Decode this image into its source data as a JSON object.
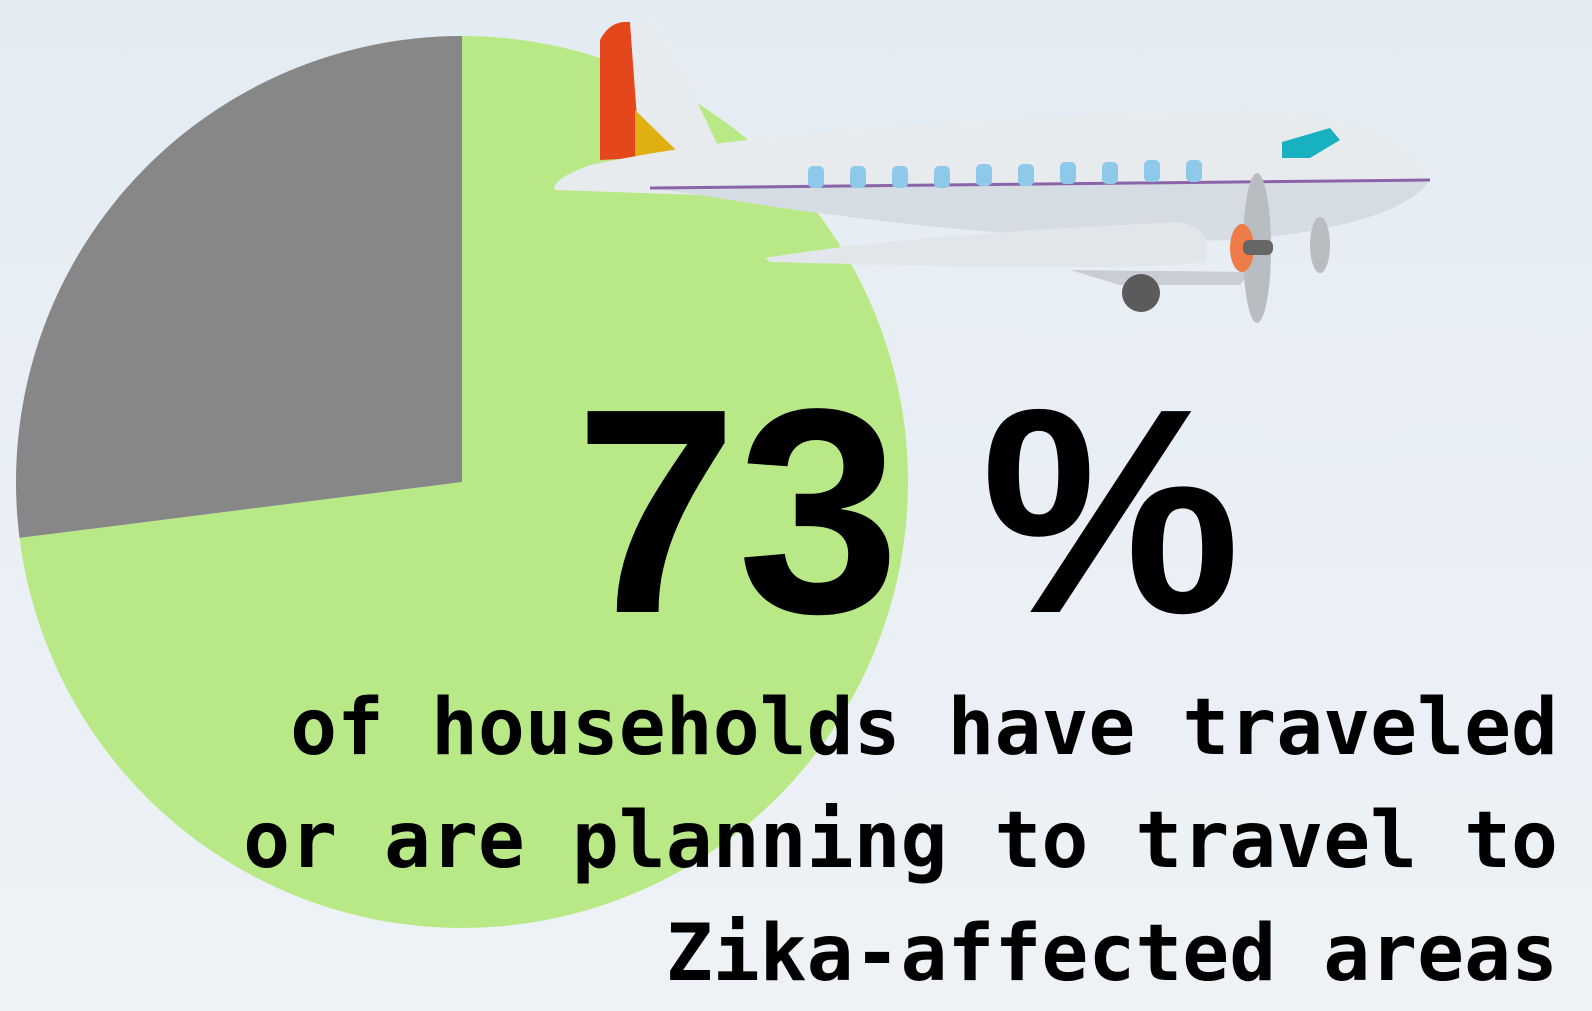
{
  "chart_data": {
    "type": "pie",
    "values": [
      73,
      27
    ],
    "value_labels": [
      "73 %",
      null
    ],
    "colors": [
      "#b9e986",
      "#878787"
    ],
    "caption": "of households have traveled or are planning to travel to Zika-affected areas"
  }
}
